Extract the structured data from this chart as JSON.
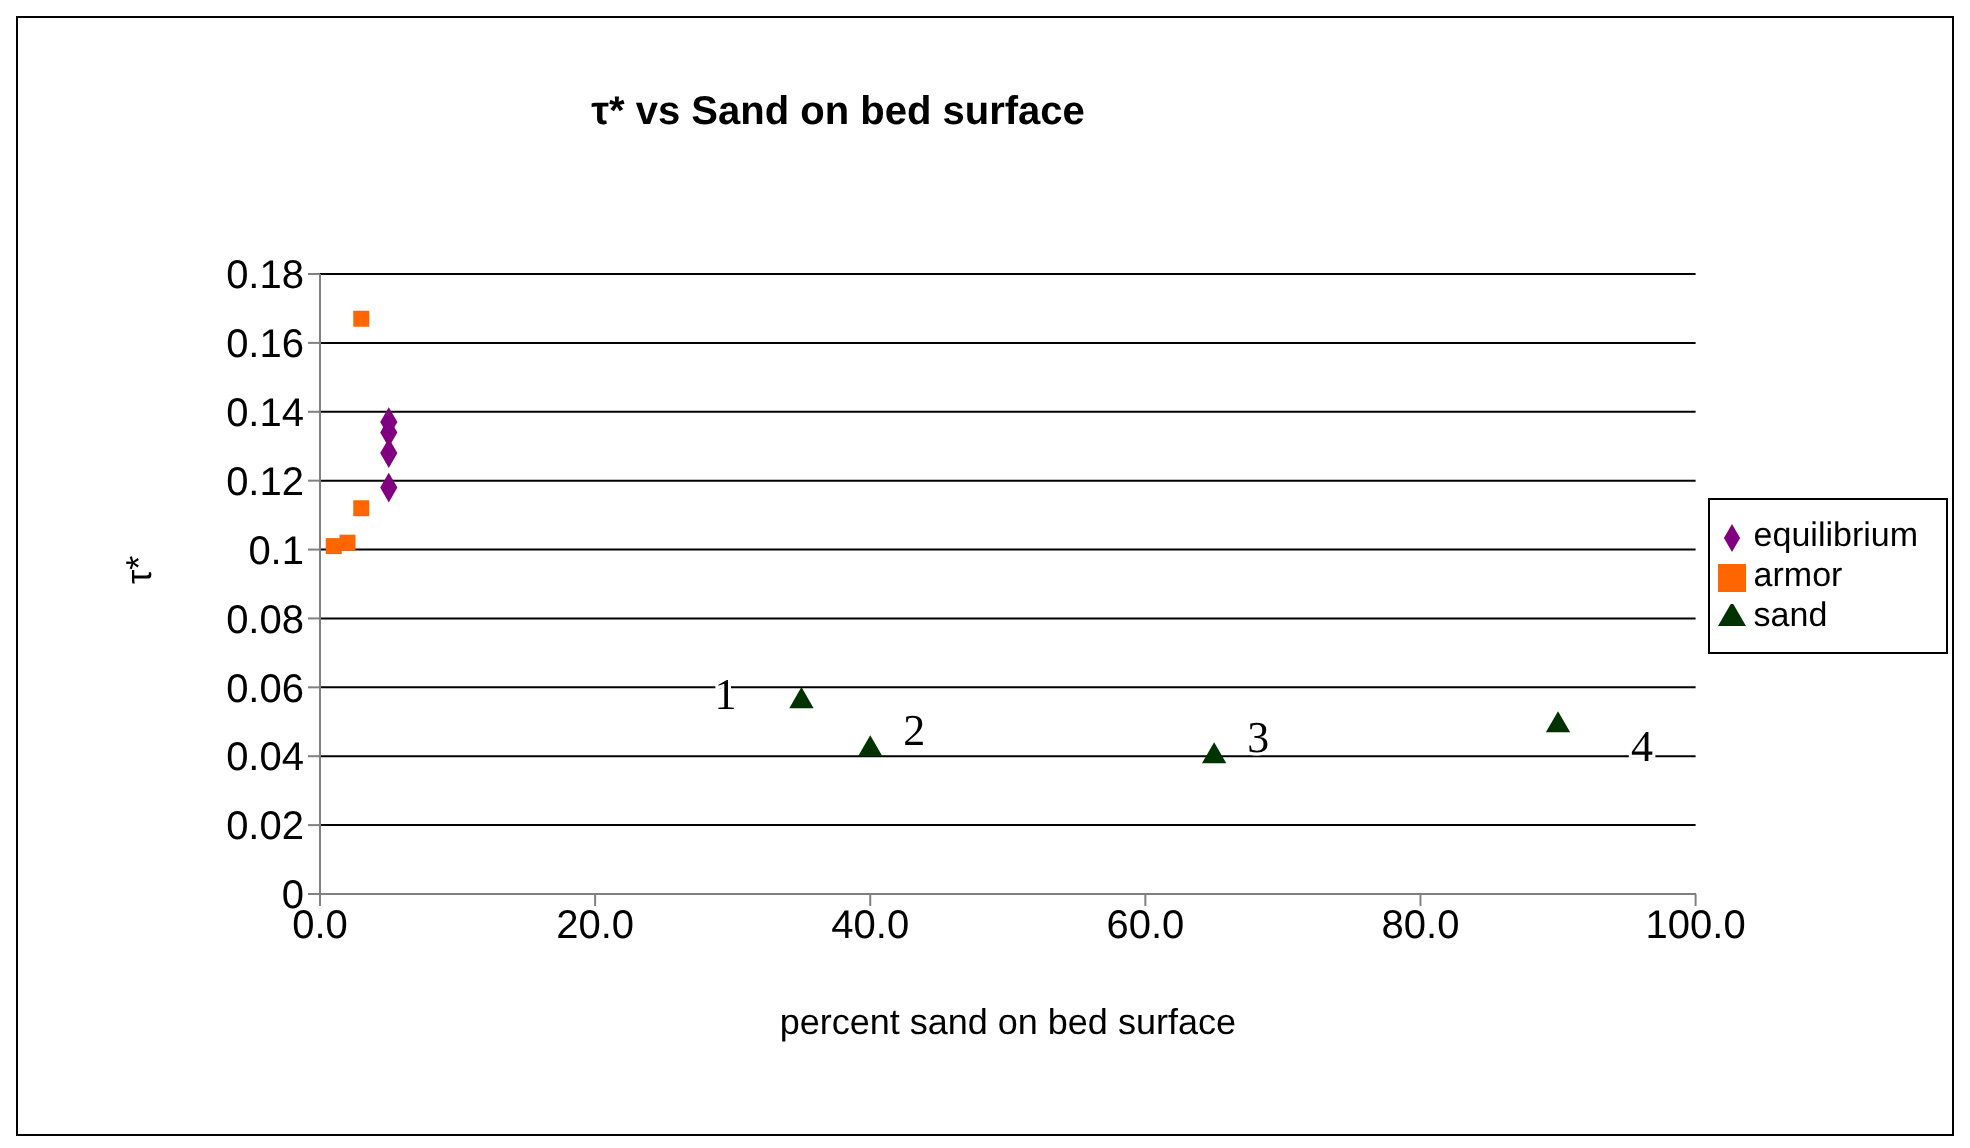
{
  "chart_data": {
    "type": "scatter",
    "title": "τ* vs Sand on bed surface",
    "xlabel": "percent sand on bed surface",
    "ylabel": "τ*",
    "xlim": [
      0,
      100
    ],
    "xticks": [
      {
        "value": 0,
        "label": "0.0"
      },
      {
        "value": 20,
        "label": "20.0"
      },
      {
        "value": 40,
        "label": "40.0"
      },
      {
        "value": 60,
        "label": "60.0"
      },
      {
        "value": 80,
        "label": "80.0"
      },
      {
        "value": 100,
        "label": "100.0"
      }
    ],
    "ylim": [
      0,
      0.18
    ],
    "yticks": [
      0,
      0.02,
      0.04,
      0.06,
      0.08,
      0.1,
      0.12,
      0.14,
      0.16,
      0.18
    ],
    "grid": "y",
    "legend": "right",
    "series": [
      {
        "name": "equilibrium",
        "color": "#800080",
        "marker": "diamond",
        "x": [
          5,
          5,
          5,
          5
        ],
        "values": [
          0.137,
          0.134,
          0.128,
          0.118
        ]
      },
      {
        "name": "armor",
        "color": "#ff6600",
        "marker": "square",
        "x": [
          3,
          3,
          2,
          1
        ],
        "values": [
          0.167,
          0.112,
          0.102,
          0.101
        ]
      },
      {
        "name": "sand",
        "color": "#003300",
        "marker": "triangle",
        "x": [
          35,
          40,
          65,
          90
        ],
        "values": [
          0.056,
          0.042,
          0.04,
          0.049
        ]
      }
    ],
    "annotations": [
      {
        "text": "1",
        "x": 35,
        "y": 0.056
      },
      {
        "text": "2",
        "x": 40,
        "y": 0.042
      },
      {
        "text": "3",
        "x": 65,
        "y": 0.04
      },
      {
        "text": "4",
        "x": 90,
        "y": 0.049
      }
    ]
  }
}
